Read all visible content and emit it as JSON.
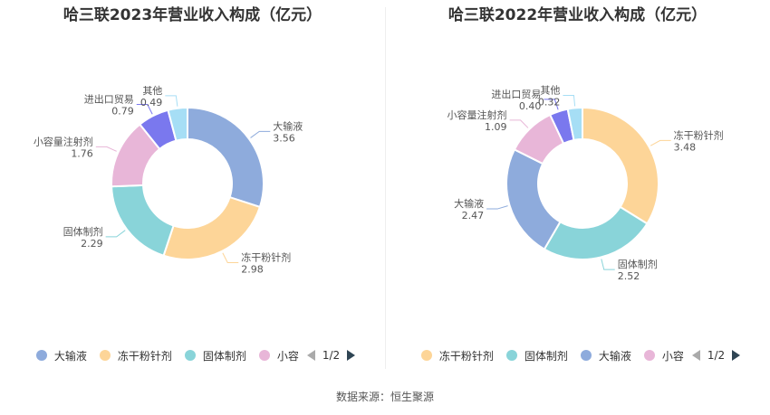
{
  "source": "数据来源：恒生聚源",
  "chart_data": [
    {
      "type": "pie",
      "title": "哈三联2023年营业收入构成（亿元）",
      "categories": [
        "大输液",
        "冻干粉针剂",
        "固体制剂",
        "小容量注射剂",
        "进出口贸易",
        "其他"
      ],
      "values": [
        3.56,
        2.98,
        2.29,
        1.76,
        0.79,
        0.49
      ],
      "colors": [
        "#8eabdc",
        "#fdd598",
        "#89d4d9",
        "#e8b6d8",
        "#7a78ee",
        "#a6def5"
      ],
      "legend": {
        "labels": [
          "大输液",
          "冻干粉针剂",
          "固体制剂",
          "小容"
        ],
        "colors": [
          "#8eabdc",
          "#fdd598",
          "#89d4d9",
          "#e8b6d8"
        ],
        "page": "1/2",
        "placement": "bottom"
      }
    },
    {
      "type": "pie",
      "title": "哈三联2022年营业收入构成（亿元）",
      "categories": [
        "冻干粉针剂",
        "固体制剂",
        "大输液",
        "小容量注射剂",
        "进出口贸易",
        "其他"
      ],
      "values": [
        3.48,
        2.52,
        2.47,
        1.09,
        0.4,
        0.32
      ],
      "colors": [
        "#fdd598",
        "#89d4d9",
        "#8eabdc",
        "#e8b6d8",
        "#7a78ee",
        "#a6def5"
      ],
      "legend": {
        "labels": [
          "冻干粉针剂",
          "固体制剂",
          "大输液",
          "小容"
        ],
        "colors": [
          "#fdd598",
          "#89d4d9",
          "#8eabdc",
          "#e8b6d8"
        ],
        "page": "1/2",
        "placement": "bottom"
      }
    }
  ]
}
